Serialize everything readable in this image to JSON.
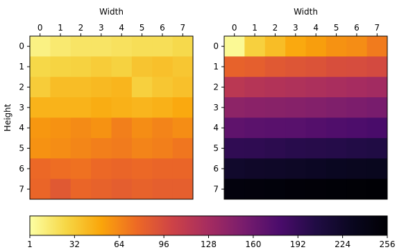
{
  "chart_data": [
    {
      "type": "heatmap",
      "title": "",
      "xlabel": "Width",
      "ylabel": "Height",
      "x_ticks": [
        "0",
        "1",
        "2",
        "3",
        "4",
        "5",
        "6",
        "7"
      ],
      "y_ticks": [
        "0",
        "1",
        "2",
        "3",
        "4",
        "5",
        "6",
        "7"
      ],
      "values": [
        [
          10,
          15,
          18,
          18,
          20,
          22,
          22,
          25
        ],
        [
          26,
          28,
          29,
          32,
          29,
          36,
          38,
          35
        ],
        [
          32,
          40,
          40,
          42,
          44,
          30,
          35,
          38
        ],
        [
          45,
          45,
          45,
          48,
          46,
          44,
          46,
          50
        ],
        [
          58,
          60,
          63,
          60,
          68,
          62,
          66,
          62
        ],
        [
          60,
          62,
          65,
          68,
          70,
          66,
          68,
          72
        ],
        [
          78,
          76,
          74,
          78,
          80,
          78,
          80,
          80
        ],
        [
          80,
          88,
          80,
          82,
          85,
          82,
          84,
          84
        ]
      ]
    },
    {
      "type": "heatmap",
      "title": "",
      "xlabel": "Width",
      "ylabel": "",
      "x_ticks": [
        "0",
        "1",
        "2",
        "3",
        "4",
        "5",
        "6",
        "7"
      ],
      "y_ticks": [
        "0",
        "1",
        "2",
        "3",
        "4",
        "5",
        "6",
        "7"
      ],
      "values": [
        [
          5,
          30,
          40,
          50,
          55,
          60,
          62,
          70
        ],
        [
          82,
          84,
          88,
          90,
          92,
          95,
          96,
          98
        ],
        [
          115,
          118,
          120,
          122,
          124,
          126,
          128,
          130
        ],
        [
          142,
          144,
          145,
          146,
          148,
          150,
          152,
          154
        ],
        [
          168,
          170,
          171,
          172,
          174,
          176,
          178,
          180
        ],
        [
          195,
          196,
          198,
          200,
          201,
          202,
          204,
          205
        ],
        [
          222,
          224,
          225,
          226,
          228,
          230,
          231,
          232
        ],
        [
          248,
          249,
          250,
          251,
          252,
          253,
          254,
          255
        ]
      ]
    }
  ],
  "colorbar": {
    "orientation": "horizontal",
    "range": [
      1,
      256
    ],
    "tick_labels": [
      "1",
      "32",
      "64",
      "96",
      "128",
      "160",
      "192",
      "224",
      "256"
    ]
  }
}
